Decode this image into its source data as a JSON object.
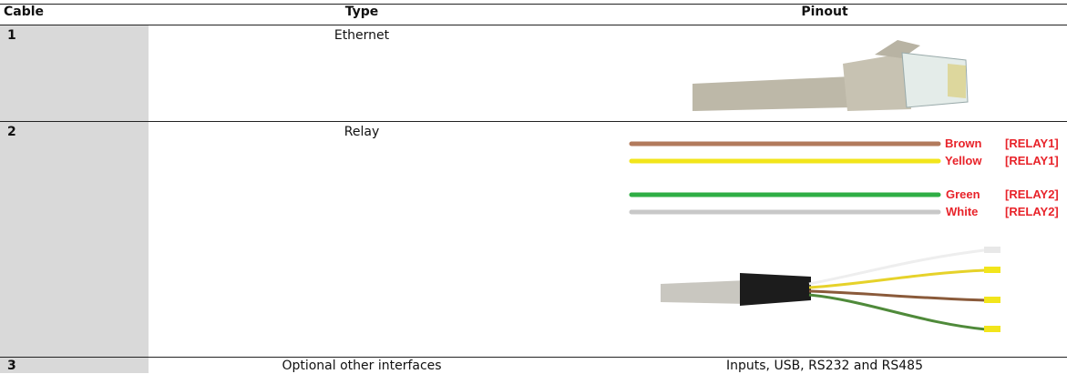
{
  "table": {
    "header": [
      "Cable",
      "Type",
      "Pinout"
    ],
    "rows": [
      [
        "1",
        "Ethernet"
      ],
      [
        "2",
        "Relay"
      ],
      [
        "3",
        "Optional other interfaces",
        "Inputs, USB, RS232 and RS485"
      ]
    ]
  },
  "relay_wires": [
    {
      "color": "Brown",
      "relay": "[RELAY1]"
    },
    {
      "color": "Yellow",
      "relay": "[RELAY1]"
    },
    {
      "color": "Green",
      "relay": "[RELAY2]"
    },
    {
      "color": "White",
      "relay": "[RELAY2]"
    }
  ]
}
